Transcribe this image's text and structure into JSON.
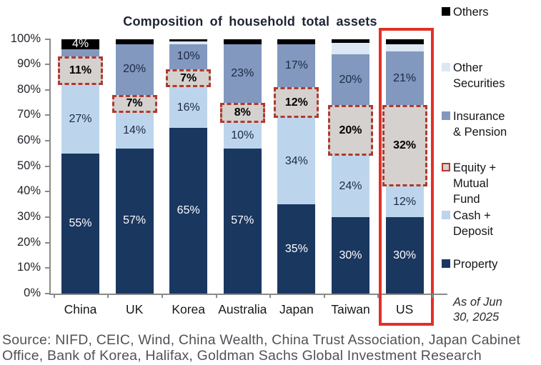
{
  "chart_data": {
    "type": "stacked-bar",
    "title": "Composition of household total assets",
    "categories": [
      "China",
      "UK",
      "Korea",
      "Australia",
      "Japan",
      "Taiwan",
      "US"
    ],
    "ylim": [
      0,
      100
    ],
    "ytick_labels": [
      "0%",
      "10%",
      "20%",
      "30%",
      "40%",
      "50%",
      "60%",
      "70%",
      "80%",
      "90%",
      "100%"
    ],
    "series": [
      {
        "name": "Property",
        "color": "#1a3760",
        "values": [
          55,
          57,
          65,
          57,
          35,
          30,
          30
        ],
        "labels": [
          "55%",
          "57%",
          "65%",
          "57%",
          "35%",
          "30%",
          "30%"
        ],
        "label_color": "#ffffff",
        "label_bold": false
      },
      {
        "name": "Cash + Deposit",
        "color": "#bdd5ec",
        "values": [
          27,
          14,
          16,
          10,
          34,
          24,
          12
        ],
        "labels": [
          "27%",
          "14%",
          "16%",
          "10%",
          "34%",
          "24%",
          "12%"
        ],
        "label_color": "#1b2a42",
        "label_bold": false
      },
      {
        "name": "Equity + Mutual Fund",
        "color": "#d4d1ce",
        "values": [
          11,
          7,
          7,
          8,
          12,
          20,
          32
        ],
        "labels": [
          "11%",
          "7%",
          "7%",
          "8%",
          "12%",
          "20%",
          "32%"
        ],
        "label_color": "#000000",
        "label_bold": true,
        "style": "dashed-red",
        "dash_color": "#b2382f"
      },
      {
        "name": "Insurance & Pension",
        "color": "#8298bf",
        "values": [
          3,
          20,
          10,
          23,
          17,
          20,
          21
        ],
        "labels": [
          "",
          "20%",
          "10%",
          "23%",
          "17%",
          "20%",
          "21%"
        ],
        "label_color": "#1b2a42",
        "label_bold": false
      },
      {
        "name": "Other Securities",
        "color": "#dce7f3",
        "values": [
          0,
          0,
          1,
          0,
          0,
          4.5,
          3
        ],
        "labels": [
          "",
          "",
          "",
          "",
          "",
          "",
          ""
        ],
        "label_color": "#1b2a42",
        "label_bold": false
      },
      {
        "name": "Others",
        "color": "#000000",
        "values": [
          4,
          2,
          1,
          2,
          2,
          1.5,
          2
        ],
        "labels": [
          "4%",
          "",
          "",
          "",
          "",
          "",
          ""
        ],
        "label_color": "#ffffff",
        "label_bold": false
      }
    ],
    "highlight": {
      "category": "US",
      "color": "#e03127"
    }
  },
  "legend": {
    "items": [
      {
        "id": "others",
        "lines": [
          "Others"
        ],
        "swatch_color": "#000000"
      },
      {
        "id": "other-securities",
        "lines": [
          "Other",
          "Securities"
        ],
        "swatch_color": "#dce7f3"
      },
      {
        "id": "insurance-pension",
        "lines": [
          "Insurance",
          "& Pension"
        ],
        "swatch_color": "#8298bf"
      },
      {
        "id": "equity-mutual-fund",
        "lines": [
          "Equity +",
          "Mutual",
          "Fund"
        ],
        "swatch_color": "#d4d1ce",
        "swatch_style": "dashed-red"
      },
      {
        "id": "cash-deposit",
        "lines": [
          "Cash +",
          "Deposit"
        ],
        "swatch_color": "#bdd5ec"
      },
      {
        "id": "property",
        "lines": [
          "Property"
        ],
        "swatch_color": "#1a3760"
      }
    ],
    "as_of_lines": [
      "As of Jun",
      "30, 2025"
    ]
  },
  "footer": {
    "source_lines": [
      "Source: NIFD, CEIC, Wind, China Wealth, China Trust Association, Japan Cabinet",
      "Office, Bank of Korea, Halifax, Goldman Sachs Global Investment Research"
    ]
  }
}
